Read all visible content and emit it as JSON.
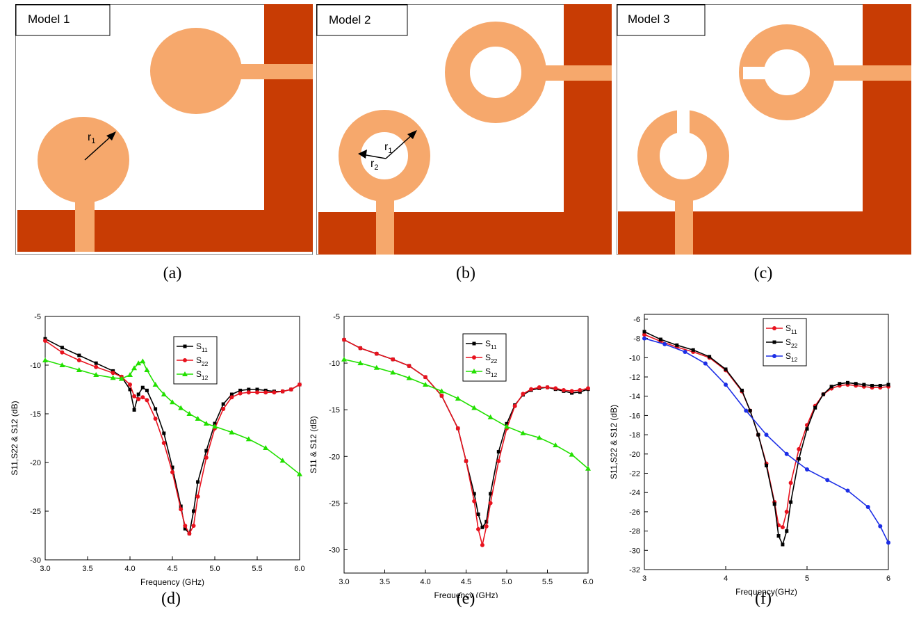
{
  "colors": {
    "copper": "#c83c04",
    "patch": "#f6a86c",
    "s11_black": "#000000",
    "s22_red": "#e8121e",
    "s12_green": "#22e000",
    "s12_blue": "#1c2ee6"
  },
  "models": [
    {
      "title": "Model 1",
      "caption": "(a)",
      "radius_labels": [
        "r",
        "1"
      ]
    },
    {
      "title": "Model 2",
      "caption": "(b)",
      "radius_labels": [
        "r",
        "1",
        "r",
        "2"
      ]
    },
    {
      "title": "Model 3",
      "caption": "(c)"
    }
  ],
  "chart_captions": [
    "(d)",
    "(e)",
    "(f)"
  ],
  "chart_data": [
    {
      "type": "line",
      "panel": "(d)",
      "xlabel": "Frequency (GHz)",
      "ylabel": "S11,S22 & S12 (dB)",
      "xlim": [
        3.0,
        6.0
      ],
      "ylim": [
        -30,
        -5
      ],
      "xticks": [
        "3.0",
        "3.5",
        "4.0",
        "4.5",
        "5.0",
        "5.5",
        "6.0"
      ],
      "yticks": [
        "-5",
        "-10",
        "-15",
        "-20",
        "-25",
        "-30"
      ],
      "legend_position": "top-center",
      "series": [
        {
          "name": "S11",
          "color": "#000000",
          "marker": "square",
          "x": [
            3.0,
            3.2,
            3.4,
            3.6,
            3.8,
            3.9,
            4.0,
            4.05,
            4.1,
            4.15,
            4.2,
            4.3,
            4.4,
            4.5,
            4.6,
            4.65,
            4.7,
            4.75,
            4.8,
            4.9,
            5.0,
            5.1,
            5.2,
            5.3,
            5.4,
            5.5,
            5.6,
            5.7,
            5.8,
            5.9,
            6.0
          ],
          "y": [
            -7.3,
            -8.2,
            -9.0,
            -9.8,
            -10.6,
            -11.2,
            -12.5,
            -14.6,
            -13.0,
            -12.3,
            -12.6,
            -14.5,
            -17.0,
            -20.5,
            -24.5,
            -26.8,
            -27.3,
            -25.0,
            -22.0,
            -18.8,
            -16.0,
            -14.0,
            -13.0,
            -12.6,
            -12.5,
            -12.5,
            -12.6,
            -12.7,
            -12.7,
            -12.5,
            -12.0
          ]
        },
        {
          "name": "S22",
          "color": "#e8121e",
          "marker": "circle",
          "x": [
            3.0,
            3.2,
            3.4,
            3.6,
            3.8,
            3.9,
            4.0,
            4.05,
            4.1,
            4.15,
            4.2,
            4.3,
            4.4,
            4.5,
            4.6,
            4.65,
            4.7,
            4.75,
            4.8,
            4.9,
            5.0,
            5.1,
            5.2,
            5.3,
            5.4,
            5.5,
            5.6,
            5.7,
            5.8,
            5.9,
            6.0
          ],
          "y": [
            -7.5,
            -8.7,
            -9.5,
            -10.2,
            -10.8,
            -11.2,
            -12.0,
            -13.2,
            -13.5,
            -13.3,
            -13.6,
            -15.5,
            -18.0,
            -21.0,
            -24.8,
            -26.5,
            -27.3,
            -26.5,
            -23.5,
            -19.5,
            -16.5,
            -14.5,
            -13.3,
            -12.9,
            -12.8,
            -12.8,
            -12.8,
            -12.8,
            -12.7,
            -12.5,
            -12.0
          ]
        },
        {
          "name": "S12",
          "color": "#22e000",
          "marker": "triangle",
          "x": [
            3.0,
            3.2,
            3.4,
            3.6,
            3.8,
            3.9,
            4.0,
            4.05,
            4.1,
            4.15,
            4.2,
            4.3,
            4.4,
            4.5,
            4.6,
            4.7,
            4.8,
            4.9,
            5.0,
            5.2,
            5.4,
            5.6,
            5.8,
            6.0
          ],
          "y": [
            -9.5,
            -10.0,
            -10.5,
            -11.0,
            -11.3,
            -11.4,
            -11.0,
            -10.3,
            -9.8,
            -9.6,
            -10.5,
            -12.0,
            -13.0,
            -13.8,
            -14.4,
            -15.0,
            -15.5,
            -16.0,
            -16.3,
            -16.9,
            -17.6,
            -18.5,
            -19.8,
            -21.2
          ]
        }
      ]
    },
    {
      "type": "line",
      "panel": "(e)",
      "xlabel": "Frequency (GHz)",
      "ylabel": "S11 & S12 (dB)",
      "xlim": [
        3.0,
        6.0
      ],
      "ylim": [
        -32.5,
        -5
      ],
      "xticks": [
        "3.0",
        "3.5",
        "4.0",
        "4.5",
        "5.0",
        "5.5",
        "6.0"
      ],
      "yticks": [
        "-5",
        "-10",
        "-15",
        "-20",
        "-25",
        "-30"
      ],
      "legend_position": "top-right",
      "series": [
        {
          "name": "S11",
          "color": "#000000",
          "marker": "square",
          "x": [
            3.0,
            3.2,
            3.4,
            3.6,
            3.8,
            4.0,
            4.2,
            4.4,
            4.5,
            4.6,
            4.65,
            4.7,
            4.75,
            4.8,
            4.9,
            5.0,
            5.1,
            5.2,
            5.3,
            5.4,
            5.5,
            5.6,
            5.7,
            5.8,
            5.9,
            6.0
          ],
          "y": [
            -7.5,
            -8.4,
            -9.0,
            -9.6,
            -10.3,
            -11.5,
            -13.5,
            -17.0,
            -20.5,
            -24.0,
            -26.2,
            -27.6,
            -27.0,
            -24.0,
            -19.5,
            -16.5,
            -14.5,
            -13.4,
            -12.9,
            -12.7,
            -12.6,
            -12.8,
            -13.0,
            -13.2,
            -13.1,
            -12.8
          ]
        },
        {
          "name": "S22",
          "color": "#e8121e",
          "marker": "circle",
          "x": [
            3.0,
            3.2,
            3.4,
            3.6,
            3.8,
            4.0,
            4.2,
            4.4,
            4.5,
            4.6,
            4.65,
            4.7,
            4.75,
            4.8,
            4.9,
            5.0,
            5.1,
            5.2,
            5.3,
            5.4,
            5.5,
            5.6,
            5.7,
            5.8,
            5.9,
            6.0
          ],
          "y": [
            -7.5,
            -8.4,
            -9.0,
            -9.6,
            -10.3,
            -11.5,
            -13.5,
            -17.0,
            -20.5,
            -24.8,
            -27.8,
            -29.5,
            -27.5,
            -25.0,
            -20.5,
            -17.0,
            -14.6,
            -13.3,
            -12.8,
            -12.6,
            -12.6,
            -12.7,
            -12.9,
            -13.0,
            -12.9,
            -12.7
          ]
        },
        {
          "name": "S12",
          "color": "#22e000",
          "marker": "triangle",
          "x": [
            3.0,
            3.2,
            3.4,
            3.6,
            3.8,
            4.0,
            4.2,
            4.4,
            4.6,
            4.8,
            5.0,
            5.2,
            5.4,
            5.6,
            5.8,
            6.0
          ],
          "y": [
            -9.6,
            -10.0,
            -10.5,
            -11.0,
            -11.6,
            -12.3,
            -13.0,
            -13.8,
            -14.8,
            -15.8,
            -16.8,
            -17.5,
            -18.0,
            -18.8,
            -19.8,
            -21.3
          ]
        }
      ]
    },
    {
      "type": "line",
      "panel": "(f)",
      "xlabel": "Frequency(GHz)",
      "ylabel": "S11,S22 & S12 (dB)",
      "xlim": [
        3,
        6
      ],
      "ylim": [
        -32,
        -5.5
      ],
      "xticks": [
        "3",
        "4",
        "5",
        "6"
      ],
      "yticks": [
        "-6",
        "-8",
        "-10",
        "-12",
        "-14",
        "-16",
        "-18",
        "-20",
        "-22",
        "-24",
        "-26",
        "-28",
        "-30",
        "-32"
      ],
      "legend_position": "top-center",
      "series": [
        {
          "name": "S11",
          "color": "#e8121e",
          "marker": "circle",
          "x": [
            3.0,
            3.2,
            3.4,
            3.6,
            3.8,
            4.0,
            4.2,
            4.3,
            4.4,
            4.5,
            4.6,
            4.65,
            4.7,
            4.75,
            4.8,
            4.9,
            5.0,
            5.1,
            5.2,
            5.3,
            5.4,
            5.5,
            5.6,
            5.7,
            5.8,
            5.9,
            6.0
          ],
          "y": [
            -7.6,
            -8.3,
            -8.9,
            -9.4,
            -10.0,
            -11.3,
            -13.5,
            -15.5,
            -18.0,
            -21.0,
            -25.0,
            -27.4,
            -27.6,
            -26.0,
            -23.0,
            -19.5,
            -17.0,
            -15.0,
            -13.8,
            -13.2,
            -12.9,
            -12.8,
            -12.9,
            -13.0,
            -13.1,
            -13.1,
            -13.0
          ]
        },
        {
          "name": "S22",
          "color": "#000000",
          "marker": "square",
          "x": [
            3.0,
            3.2,
            3.4,
            3.6,
            3.8,
            4.0,
            4.2,
            4.3,
            4.4,
            4.5,
            4.6,
            4.65,
            4.7,
            4.75,
            4.8,
            4.9,
            5.0,
            5.1,
            5.2,
            5.3,
            5.4,
            5.5,
            5.6,
            5.7,
            5.8,
            5.9,
            6.0
          ],
          "y": [
            -7.3,
            -8.1,
            -8.7,
            -9.2,
            -9.9,
            -11.2,
            -13.4,
            -15.5,
            -18.0,
            -21.2,
            -25.2,
            -28.5,
            -29.4,
            -28.0,
            -25.0,
            -20.5,
            -17.4,
            -15.2,
            -13.8,
            -13.0,
            -12.7,
            -12.6,
            -12.7,
            -12.8,
            -12.9,
            -12.9,
            -12.8
          ]
        },
        {
          "name": "S12",
          "color": "#1c2ee6",
          "marker": "circle",
          "x": [
            3.0,
            3.25,
            3.5,
            3.75,
            4.0,
            4.25,
            4.5,
            4.75,
            5.0,
            5.25,
            5.5,
            5.75,
            5.9,
            6.0
          ],
          "y": [
            -8.0,
            -8.6,
            -9.4,
            -10.6,
            -12.8,
            -15.5,
            -18.0,
            -20.0,
            -21.6,
            -22.7,
            -23.8,
            -25.5,
            -27.5,
            -29.2
          ]
        }
      ]
    }
  ]
}
